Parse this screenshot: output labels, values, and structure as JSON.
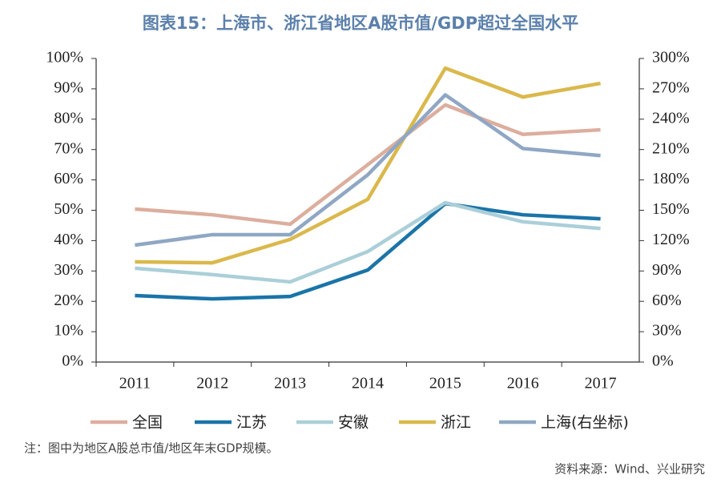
{
  "chart_data": {
    "type": "line",
    "title": "图表15：上海市、浙江省地区A股市值/GDP超过全国水平",
    "note": "注：图中为地区A股总市值/地区年末GDP规模。",
    "source": "资料来源：Wind、兴业研究",
    "categories": [
      "2011",
      "2012",
      "2013",
      "2014",
      "2015",
      "2016",
      "2017"
    ],
    "series": [
      {
        "name": "全国",
        "color": "#dcae9e",
        "values": [
          50.4,
          48.5,
          45.4,
          65,
          84.7,
          75,
          76.5
        ]
      },
      {
        "name": "江苏",
        "color": "#1a74a8",
        "values": [
          21.9,
          20.8,
          21.6,
          30.3,
          52.2,
          48.5,
          47.2
        ]
      },
      {
        "name": "安徽",
        "color": "#abcfd8",
        "values": [
          30.9,
          28.8,
          26.4,
          36.4,
          52.5,
          46.2,
          44
        ]
      },
      {
        "name": "浙江",
        "color": "#dab84c",
        "values": [
          33,
          32.7,
          40.4,
          53.6,
          96.8,
          87.3,
          91.8
        ]
      },
      {
        "name": "上海(右坐标)",
        "color": "#8fa7c4",
        "axis": "y2",
        "values": [
          115.6,
          125.9,
          125.9,
          185,
          264,
          211,
          204
        ]
      }
    ],
    "ylim": [
      0,
      100
    ],
    "yticks": [
      {
        "value": 0,
        "label": "0%"
      },
      {
        "value": 10,
        "label": "10%"
      },
      {
        "value": 20,
        "label": "20%"
      },
      {
        "value": 30,
        "label": "30%"
      },
      {
        "value": 40,
        "label": "40%"
      },
      {
        "value": 50,
        "label": "50%"
      },
      {
        "value": 60,
        "label": "60%"
      },
      {
        "value": 70,
        "label": "70%"
      },
      {
        "value": 80,
        "label": "80%"
      },
      {
        "value": 90,
        "label": "90%"
      },
      {
        "value": 100,
        "label": "100%"
      }
    ],
    "y2lim": [
      0,
      300
    ],
    "y2ticks": [
      {
        "value": 0,
        "label": "0%"
      },
      {
        "value": 30,
        "label": "30%"
      },
      {
        "value": 60,
        "label": "60%"
      },
      {
        "value": 90,
        "label": "90%"
      },
      {
        "value": 120,
        "label": "120%"
      },
      {
        "value": 150,
        "label": "150%"
      },
      {
        "value": 180,
        "label": "180%"
      },
      {
        "value": 210,
        "label": "210%"
      },
      {
        "value": 240,
        "label": "240%"
      },
      {
        "value": 270,
        "label": "270%"
      },
      {
        "value": 300,
        "label": "300%"
      }
    ],
    "grid": false
  }
}
